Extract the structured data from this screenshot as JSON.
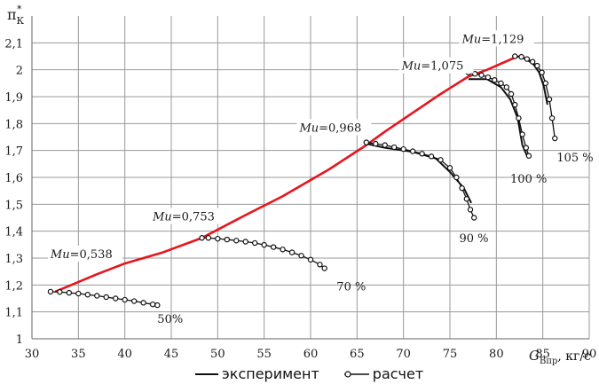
{
  "chart_data": {
    "type": "line",
    "ylabel": "π",
    "ylabel_sub": "К",
    "ylabel_sup": "*",
    "xlabel": "G",
    "xlabel_sub": "Впр",
    "xlabel_unit": ", кг/с",
    "xlim": [
      30,
      90
    ],
    "ylim": [
      1,
      2.2
    ],
    "xticks": [
      30,
      35,
      40,
      45,
      50,
      55,
      60,
      65,
      70,
      75,
      80,
      85,
      90
    ],
    "yticks": [
      "1",
      "1,1",
      "1,2",
      "1,3",
      "1,4",
      "1,5",
      "1,6",
      "1,7",
      "1,8",
      "1,9",
      "2",
      "2,1"
    ],
    "yticks_values": [
      1,
      1.1,
      1.2,
      1.3,
      1.4,
      1.5,
      1.6,
      1.7,
      1.8,
      1.9,
      2.0,
      2.1
    ],
    "grid": true,
    "colors": {
      "operating_line": "#e8141b",
      "experiment": "#111111",
      "calc": "#111111"
    },
    "operating_line": {
      "x": [
        32.5,
        37,
        40,
        44,
        48.3,
        53,
        57,
        62,
        66,
        68,
        71,
        74,
        77,
        79,
        82.3
      ],
      "y": [
        1.175,
        1.24,
        1.28,
        1.32,
        1.375,
        1.46,
        1.53,
        1.63,
        1.72,
        1.77,
        1.84,
        1.91,
        1.975,
        2.0,
        2.05
      ]
    },
    "experiment_lines": [
      {
        "x": [
          66.0,
          68.0,
          71.0,
          73.5,
          75.0,
          76.5,
          77.3
        ],
        "y": [
          1.725,
          1.71,
          1.695,
          1.67,
          1.62,
          1.56,
          1.505
        ]
      },
      {
        "x": [
          77.0,
          79.0,
          80.5,
          81.5,
          82.3,
          82.8,
          83.3
        ],
        "y": [
          1.965,
          1.965,
          1.935,
          1.89,
          1.82,
          1.72,
          1.68
        ]
      },
      {
        "x": [
          82.3,
          83.2,
          84.0,
          84.6,
          85.1,
          85.5
        ],
        "y": [
          2.05,
          2.04,
          2.02,
          1.99,
          1.94,
          1.87
        ]
      }
    ],
    "calc_series": [
      {
        "x": [
          32.0,
          33.0,
          34.0,
          35.0,
          36.0,
          37.0,
          38.0,
          39.0,
          40.0,
          41.0,
          42.0,
          43.0,
          43.5
        ],
        "y": [
          1.175,
          1.174,
          1.171,
          1.168,
          1.164,
          1.16,
          1.155,
          1.15,
          1.145,
          1.14,
          1.134,
          1.128,
          1.125
        ]
      },
      {
        "x": [
          48.3,
          49,
          50,
          51,
          52,
          53,
          54,
          55,
          56,
          57,
          58,
          59,
          60,
          61,
          61.5
        ],
        "y": [
          1.375,
          1.375,
          1.372,
          1.369,
          1.365,
          1.361,
          1.356,
          1.349,
          1.341,
          1.332,
          1.321,
          1.309,
          1.294,
          1.276,
          1.262
        ]
      },
      {
        "x": [
          66.0,
          67.0,
          68.0,
          69.0,
          70.0,
          71.0,
          72.0,
          73.0,
          74.0,
          75.0,
          75.7,
          76.3,
          76.8,
          77.2,
          77.6
        ],
        "y": [
          1.73,
          1.725,
          1.72,
          1.712,
          1.705,
          1.697,
          1.688,
          1.678,
          1.665,
          1.635,
          1.6,
          1.56,
          1.52,
          1.48,
          1.45
        ]
      },
      {
        "x": [
          77.0,
          77.7,
          78.4,
          79.1,
          79.8,
          80.5,
          81.1,
          81.6,
          82.0,
          82.4,
          82.8,
          83.2,
          83.5
        ],
        "y": [
          1.99,
          1.985,
          1.98,
          1.972,
          1.962,
          1.95,
          1.935,
          1.91,
          1.87,
          1.82,
          1.76,
          1.71,
          1.68
        ]
      },
      {
        "x": [
          82.0,
          82.7,
          83.3,
          83.9,
          84.4,
          84.9,
          85.3,
          85.7,
          86.0,
          86.3
        ],
        "y": [
          2.05,
          2.048,
          2.04,
          2.03,
          2.015,
          1.99,
          1.95,
          1.89,
          1.82,
          1.745
        ]
      }
    ],
    "annotations": [
      {
        "text": "Mu=0,538",
        "prefix": "Mu",
        "value": "=0,538",
        "x": 32.0,
        "y": 1.3
      },
      {
        "text": "Mu=0,753",
        "prefix": "Mu",
        "value": "=0,753",
        "x": 43.0,
        "y": 1.44
      },
      {
        "text": "Mu=0,968",
        "prefix": "Mu",
        "value": "=0,968",
        "x": 58.8,
        "y": 1.77
      },
      {
        "text": "Mu=1,075",
        "prefix": "Mu",
        "value": "=1,075",
        "x": 69.8,
        "y": 2.0
      },
      {
        "text": "Mu=1,129",
        "prefix": "Mu",
        "value": "=1,129",
        "x": 76.3,
        "y": 2.1
      }
    ],
    "speed_labels": [
      {
        "text": "50%",
        "x": 43.5,
        "y": 1.06
      },
      {
        "text": "70 %",
        "x": 62.8,
        "y": 1.18
      },
      {
        "text": "90 %",
        "x": 76.0,
        "y": 1.36
      },
      {
        "text": "100 %",
        "x": 81.5,
        "y": 1.58
      },
      {
        "text": "105 %",
        "x": 86.5,
        "y": 1.66
      }
    ],
    "legend": {
      "position": "bottom",
      "items": [
        {
          "label": "эксперимент",
          "style": "line"
        },
        {
          "label": "расчет",
          "style": "line-circle"
        }
      ]
    }
  }
}
